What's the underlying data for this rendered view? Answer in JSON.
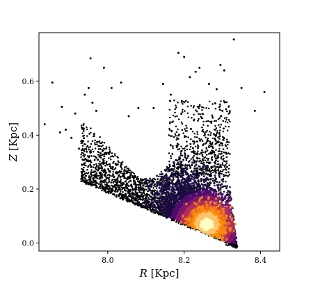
{
  "chart_data": {
    "type": "scatter",
    "title": "",
    "xlabel": {
      "symbol": "R",
      "unit": "[Kpc]"
    },
    "ylabel": {
      "symbol": "Z",
      "unit": "[Kpc]"
    },
    "xlim": [
      7.82,
      8.45
    ],
    "ylim": [
      -0.03,
      0.78
    ],
    "xticks": [
      8.0,
      8.2,
      8.4
    ],
    "xtick_labels": [
      "8.0",
      "8.2",
      "8.4"
    ],
    "yticks": [
      0.0,
      0.2,
      0.4,
      0.6
    ],
    "ytick_labels": [
      "0.0",
      "0.2",
      "0.4",
      "0.6"
    ],
    "grid": false,
    "colormap": "magma",
    "point_color": "#000000",
    "density_colors": [
      "#1b0c41",
      "#4f0c6b",
      "#81176d",
      "#b32e5a",
      "#e45a31",
      "#f98e09",
      "#fbc36a",
      "#fcfdbf"
    ],
    "density_peak": {
      "x": 8.26,
      "y": 0.07
    },
    "points": [
      {
        "x": 7.835,
        "y": 0.44
      },
      {
        "x": 7.855,
        "y": 0.595
      },
      {
        "x": 7.88,
        "y": 0.505
      },
      {
        "x": 7.875,
        "y": 0.41
      },
      {
        "x": 7.89,
        "y": 0.42
      },
      {
        "x": 7.905,
        "y": 0.39
      },
      {
        "x": 7.915,
        "y": 0.48
      },
      {
        "x": 7.925,
        "y": 0.35
      },
      {
        "x": 7.94,
        "y": 0.55
      },
      {
        "x": 7.95,
        "y": 0.575
      },
      {
        "x": 7.955,
        "y": 0.685
      },
      {
        "x": 7.96,
        "y": 0.52
      },
      {
        "x": 7.97,
        "y": 0.49
      },
      {
        "x": 7.99,
        "y": 0.65
      },
      {
        "x": 8.01,
        "y": 0.575
      },
      {
        "x": 8.035,
        "y": 0.595
      },
      {
        "x": 8.055,
        "y": 0.47
      },
      {
        "x": 8.08,
        "y": 0.5
      },
      {
        "x": 8.12,
        "y": 0.5
      },
      {
        "x": 8.145,
        "y": 0.59
      },
      {
        "x": 8.165,
        "y": 0.55
      },
      {
        "x": 8.185,
        "y": 0.705
      },
      {
        "x": 8.2,
        "y": 0.69
      },
      {
        "x": 8.215,
        "y": 0.615
      },
      {
        "x": 8.23,
        "y": 0.635
      },
      {
        "x": 8.24,
        "y": 0.65
      },
      {
        "x": 8.265,
        "y": 0.59
      },
      {
        "x": 8.285,
        "y": 0.57
      },
      {
        "x": 8.295,
        "y": 0.66
      },
      {
        "x": 8.305,
        "y": 0.64
      },
      {
        "x": 8.3,
        "y": 0.49
      },
      {
        "x": 8.33,
        "y": 0.755
      },
      {
        "x": 8.35,
        "y": 0.575
      },
      {
        "x": 8.385,
        "y": 0.49
      },
      {
        "x": 8.41,
        "y": 0.56
      }
    ]
  }
}
